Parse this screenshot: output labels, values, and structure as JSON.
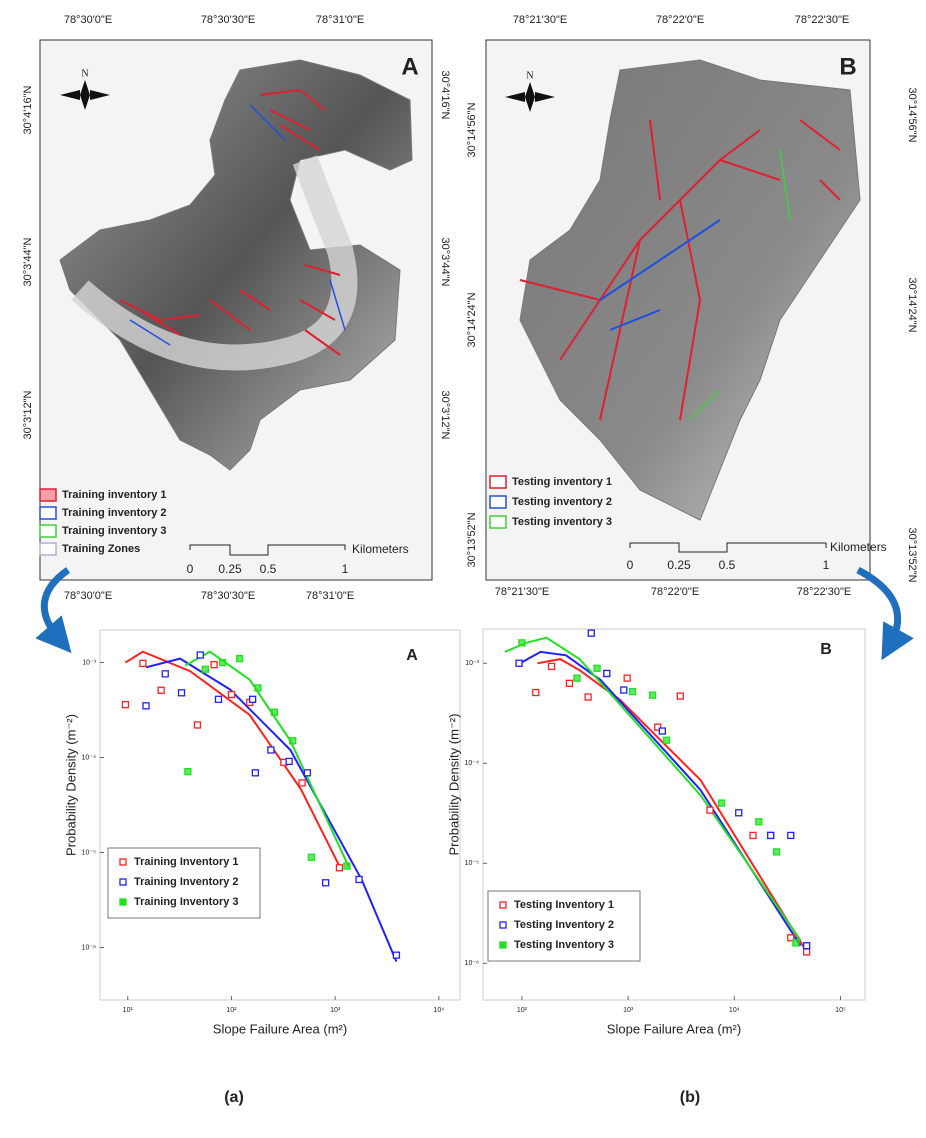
{
  "figure": {
    "maps": [
      {
        "panel": "A",
        "north": "N",
        "top_labels": [
          "78°30'0\"E",
          "78°30'30\"E",
          "78°31'0\"E"
        ],
        "bottom_labels": [
          "78°30'0\"E",
          "78°30'30\"E",
          "78°31'0\"E"
        ],
        "left_labels": [
          "30°4'16\"N",
          "30°3'44\"N",
          "30°3'12\"N"
        ],
        "right_labels": [
          "30°4'16\"N",
          "30°3'44\"N",
          "30°3'12\"N"
        ],
        "legend": [
          "Training inventory 1",
          "Training inventory 2",
          "Training inventory 3",
          "Training Zones"
        ],
        "scale_labels": [
          "0",
          "0.25",
          "0.5",
          "1"
        ],
        "scale_unit": "Kilometers"
      },
      {
        "panel": "B",
        "north": "N",
        "top_labels": [
          "78°21'30\"E",
          "78°22'0\"E",
          "78°22'30\"E"
        ],
        "bottom_labels": [
          "78°21'30\"E",
          "78°22'0\"E",
          "78°22'30\"E"
        ],
        "left_labels": [
          "30°14'56\"N",
          "30°14'24\"N",
          "30°13'52\"N"
        ],
        "right_labels": [
          "30°14'56\"N",
          "30°14'24\"N",
          "30°13'52\"N"
        ],
        "legend": [
          "Testing inventory 1",
          "Testing inventory 2",
          "Testing inventory 3"
        ],
        "scale_labels": [
          "0",
          "0.25",
          "0.5",
          "1"
        ],
        "scale_unit": "Kilometers"
      }
    ],
    "captions": [
      "(a)",
      "(b)"
    ]
  },
  "chart_data": [
    {
      "type": "scatter",
      "title": "A",
      "x_label": "Slope Failure Area (m²)",
      "y_label": "Probability Density (m⁻²)",
      "log_x": true,
      "log_y": true,
      "xlim": [
        5.4,
        16000
      ],
      "ylim": [
        2.8e-07,
        0.0022
      ],
      "xticks": [
        {
          "value": 10,
          "label": "10¹"
        },
        {
          "value": 100,
          "label": "10²"
        },
        {
          "value": 1000,
          "label": "10³"
        },
        {
          "value": 10000,
          "label": "10⁴"
        }
      ],
      "yticks": [
        {
          "value": 0.001,
          "label": "10⁻³"
        },
        {
          "value": 0.0001,
          "label": "10⁻⁴"
        },
        {
          "value": 1e-05,
          "label": "10⁻⁵"
        },
        {
          "value": 1e-06,
          "label": "10⁻⁶"
        }
      ],
      "series": [
        {
          "name": "Training Inventory 1",
          "color": "#ff2020",
          "x": [
            9.5,
            14,
            21,
            47,
            68,
            100,
            150,
            320,
            480,
            1100
          ],
          "values": [
            0.00036,
            0.00098,
            0.00051,
            0.00022,
            0.00095,
            0.00046,
            0.00038,
            8.9e-05,
            5.4e-05,
            6.9e-06
          ]
        },
        {
          "name": "Training Inventory 2",
          "color": "#2020ff",
          "x": [
            15,
            23,
            33,
            50,
            75,
            160,
            170,
            240,
            360,
            540,
            810,
            1700,
            3900
          ],
          "values": [
            0.00035,
            0.00076,
            0.00048,
            0.0012,
            0.00041,
            0.00041,
            6.9e-05,
            0.00012,
            9.1e-05,
            6.9e-05,
            4.8e-06,
            5.2e-06,
            8.3e-07
          ]
        },
        {
          "name": "Training Inventory 3",
          "color": "#20e020",
          "x": [
            38,
            56,
            82,
            120,
            180,
            260,
            390,
            590,
            1300
          ],
          "values": [
            7.1e-05,
            0.00085,
            0.001,
            0.0011,
            0.00054,
            0.0003,
            0.00015,
            8.9e-06,
            7.2e-06
          ]
        }
      ],
      "lines": [
        {
          "color": "#ff2020",
          "x": [
            9.5,
            14,
            40,
            150,
            470,
            1100
          ],
          "values": [
            0.001,
            0.0013,
            0.00081,
            0.00028,
            4.6e-05,
            7.2e-06
          ]
        },
        {
          "color": "#2020ff",
          "x": [
            15,
            32,
            97,
            370,
            1800,
            3900
          ],
          "values": [
            0.00089,
            0.0011,
            0.00052,
            0.00012,
            5.2e-06,
            7.1e-07
          ]
        },
        {
          "color": "#20e020",
          "x": [
            36,
            62,
            150,
            370,
            1350
          ],
          "values": [
            0.00093,
            0.0013,
            0.00066,
            0.00015,
            7.1e-06
          ]
        }
      ]
    },
    {
      "type": "scatter",
      "title": "B",
      "x_label": "Slope Failure Area (m²)",
      "y_label": "Probability Density (m⁻²)",
      "log_x": true,
      "log_y": true,
      "xlim": [
        43,
        170000
      ],
      "ylim": [
        4.3e-07,
        0.0022
      ],
      "xticks": [
        {
          "value": 100,
          "label": "10²"
        },
        {
          "value": 1000,
          "label": "10³"
        },
        {
          "value": 10000,
          "label": "10⁴"
        },
        {
          "value": 100000,
          "label": "10⁵"
        }
      ],
      "yticks": [
        {
          "value": 0.001,
          "label": "10⁻³"
        },
        {
          "value": 0.0001,
          "label": "10⁻⁴"
        },
        {
          "value": 1e-05,
          "label": "10⁻⁵"
        },
        {
          "value": 1e-06,
          "label": "10⁻⁶"
        }
      ],
      "series": [
        {
          "name": "Testing Inventory 1",
          "color": "#ff2020",
          "x": [
            135,
            190,
            280,
            420,
            630,
            980,
            1900,
            3100,
            5900,
            15000,
            22000,
            34000,
            48000
          ],
          "values": [
            0.00051,
            0.00093,
            0.00063,
            0.00046,
            0.00079,
            0.00071,
            0.00023,
            0.00047,
            3.4e-05,
            1.9e-05,
            1.9e-05,
            1.8e-06,
            1.3e-06
          ]
        },
        {
          "name": "Testing Inventory 2",
          "color": "#2020ff",
          "x": [
            94,
            450,
            630,
            910,
            2100,
            11000,
            22000,
            34000,
            48000
          ],
          "values": [
            0.001,
            0.002,
            0.00079,
            0.00054,
            0.00021,
            3.2e-05,
            1.9e-05,
            1.9e-05,
            1.5e-06
          ]
        },
        {
          "name": "Testing Inventory 3",
          "color": "#20e020",
          "x": [
            100,
            330,
            510,
            1100,
            1700,
            2300,
            7600,
            17000,
            25000,
            38000
          ],
          "values": [
            0.0016,
            0.00071,
            0.00089,
            0.00052,
            0.00048,
            0.00017,
            4e-05,
            2.6e-05,
            1.3e-05,
            1.6e-06
          ]
        }
      ],
      "lines": [
        {
          "color": "#ff2020",
          "x": [
            140,
            230,
            350,
            840,
            4800,
            48000
          ],
          "values": [
            0.001,
            0.0011,
            0.00085,
            0.00043,
            6.8e-05,
            1.3e-06
          ]
        },
        {
          "color": "#2020ff",
          "x": [
            96,
            150,
            260,
            550,
            4800,
            42000
          ],
          "values": [
            0.001,
            0.0013,
            0.0012,
            0.00068,
            5.4e-05,
            1.5e-06
          ]
        },
        {
          "color": "#20e020",
          "x": [
            69,
            110,
            170,
            350,
            4800,
            42000
          ],
          "values": [
            0.0013,
            0.0016,
            0.0018,
            0.0011,
            4.8e-05,
            1.7e-06
          ]
        }
      ]
    }
  ]
}
